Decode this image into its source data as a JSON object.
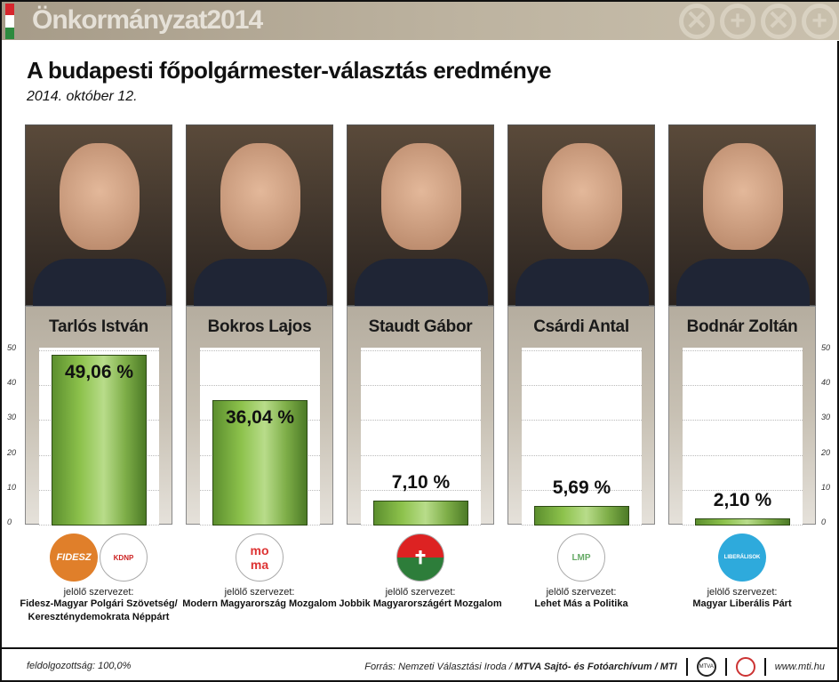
{
  "header": {
    "brand": "Önkormányzat2014",
    "title": "A budapesti főpolgármester-választás eredménye",
    "date": "2014. október 12.",
    "flag_colors": [
      "#d7262d",
      "#ffffff",
      "#2d8a3e"
    ]
  },
  "chart_data": {
    "type": "bar",
    "title": "A budapesti főpolgármester-választás eredménye",
    "subtitle": "2014. október 12.",
    "categories": [
      "Tarlós István",
      "Bokros Lajos",
      "Staudt Gábor",
      "Csárdi Antal",
      "Bodnár Zoltán"
    ],
    "values": [
      49.06,
      36.04,
      7.1,
      5.69,
      2.1
    ],
    "labels": [
      "49,06 %",
      "36,04 %",
      "7,10 %",
      "5,69 %",
      "2,10 %"
    ],
    "ylim": [
      0,
      50
    ],
    "yticks": [
      0,
      10,
      20,
      30,
      40,
      50
    ],
    "xlabel": "",
    "ylabel": "%",
    "grid": true
  },
  "candidates": [
    {
      "name": "Tarlós István",
      "value": "49,06 %",
      "org_label": "jelölő szervezet:",
      "org": "Fidesz-Magyar Polgári Szövetség/ Kereszténydemokrata Néppárt",
      "logo": "FIDESZ"
    },
    {
      "name": "Bokros Lajos",
      "value": "36,04 %",
      "org_label": "jelölő szervezet:",
      "org": "Modern Magyarország Mozgalom",
      "logo": "MoMa"
    },
    {
      "name": "Staudt Gábor",
      "value": "7,10 %",
      "org_label": "jelölő szervezet:",
      "org": "Jobbik Magyarországért Mozgalom",
      "logo": "Jobbik"
    },
    {
      "name": "Csárdi Antal",
      "value": "5,69 %",
      "org_label": "jelölő szervezet:",
      "org": "Lehet Más a Politika",
      "logo": "LMP"
    },
    {
      "name": "Bodnár Zoltán",
      "value": "2,10 %",
      "org_label": "jelölő szervezet:",
      "org": "Magyar Liberális Párt",
      "logo": "LIBERÁLISOK"
    }
  ],
  "axis": [
    "50",
    "40",
    "30",
    "20",
    "10",
    "0"
  ],
  "footer": {
    "progress": "feldolgozottság: 100,0%",
    "source_prefix": "Forrás: Nemzeti Választási Iroda /",
    "source_bold": "MTVA Sajtó- és Fotóarchívum / MTI",
    "mtva": "MTVA",
    "site": "www.mti.hu"
  }
}
